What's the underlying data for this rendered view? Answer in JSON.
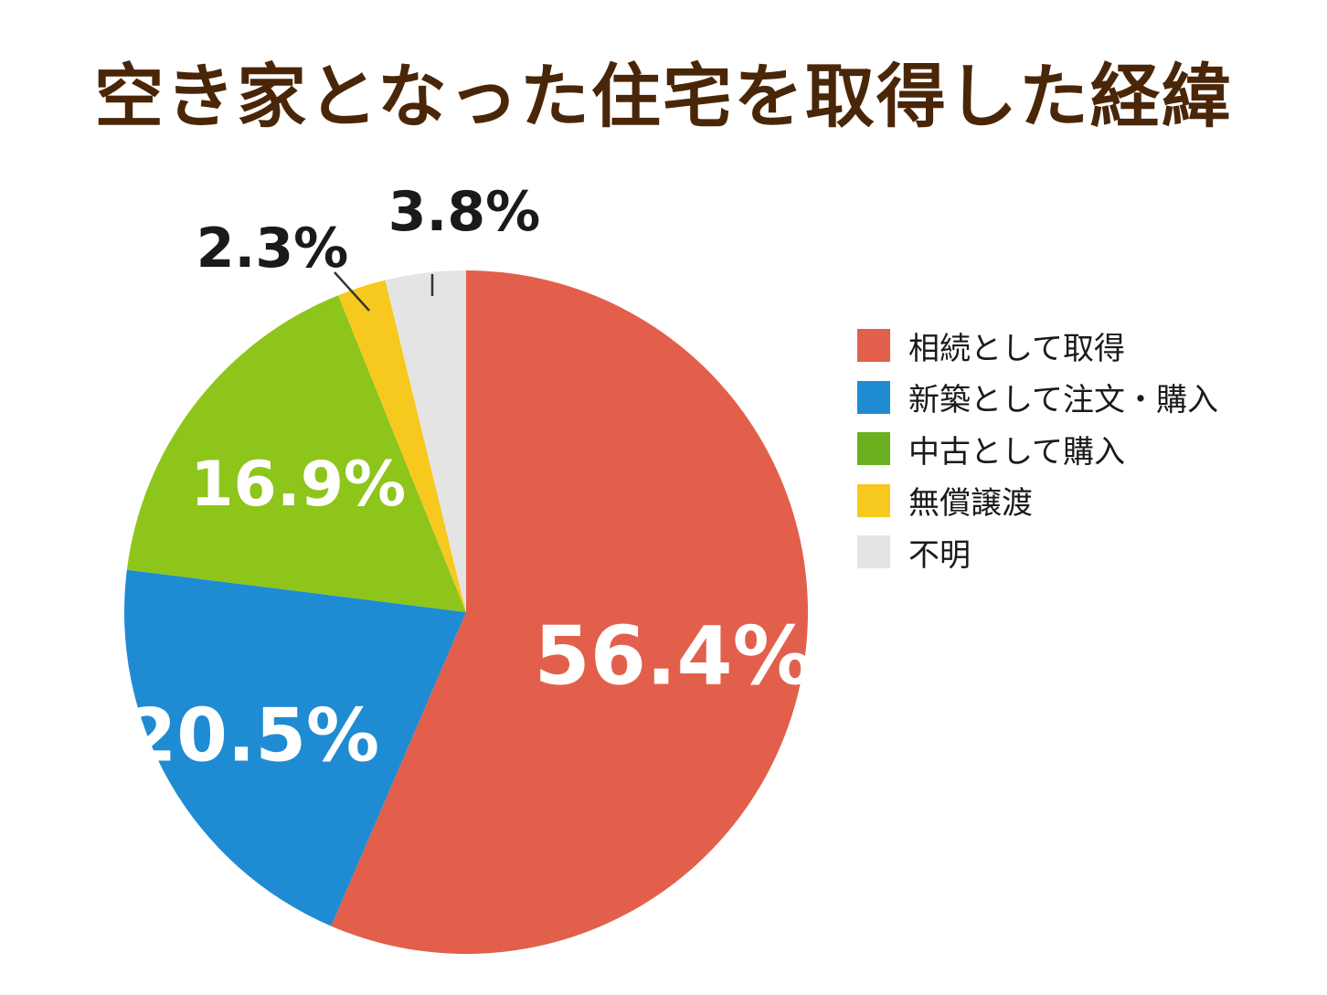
{
  "chart_data": {
    "type": "pie",
    "title": "空き家となった住宅を取得した経緯",
    "slices": [
      {
        "label": "相続として取得",
        "value": 56.4,
        "display": "56.4%",
        "color": "#e2604b"
      },
      {
        "label": "新築として注文・購入",
        "value": 20.5,
        "display": "20.5%",
        "color": "#1f8bd2"
      },
      {
        "label": "中古として購入",
        "value": 16.9,
        "display": "16.9%",
        "color": "#8dc51a"
      },
      {
        "label": "無償譲渡",
        "value": 2.3,
        "display": "2.3%",
        "color": "#f7c91e"
      },
      {
        "label": "不明",
        "value": 3.8,
        "display": "3.8%",
        "color": "#e4e4e4"
      }
    ],
    "legend_position": "right",
    "legend_colors": [
      "#e2604b",
      "#1f8bd2",
      "#6ab01e",
      "#f7c91e",
      "#e4e4e4"
    ],
    "start_angle": "12 o'clock",
    "direction": "clockwise"
  },
  "colors": {
    "title": "#4a2608",
    "inside_label": "#ffffff",
    "outside_label": "#1a1a1a",
    "leader_line": "#333333"
  }
}
